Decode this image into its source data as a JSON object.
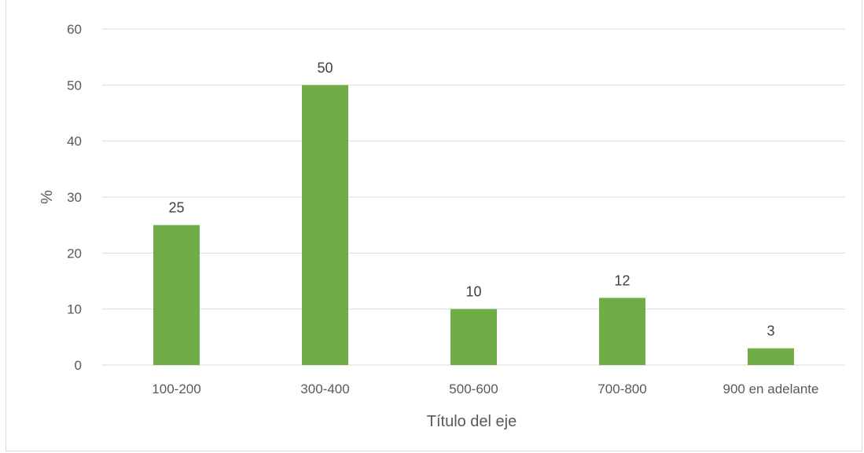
{
  "chart_data": {
    "type": "bar",
    "categories": [
      "100-200",
      "300-400",
      "500-600",
      "700-800",
      "900 en adelante"
    ],
    "values": [
      25,
      50,
      10,
      12,
      3
    ],
    "data_labels": [
      "25",
      "50",
      "10",
      "12",
      "3"
    ],
    "xlabel": "Título del eje",
    "ylabel": "%",
    "ylim": [
      0,
      60
    ],
    "yticks": [
      "0",
      "10",
      "20",
      "30",
      "40",
      "50",
      "60"
    ],
    "grid": true,
    "legend": "none",
    "bar_color": "#70ad47",
    "grid_color": "#d9d9d9"
  }
}
